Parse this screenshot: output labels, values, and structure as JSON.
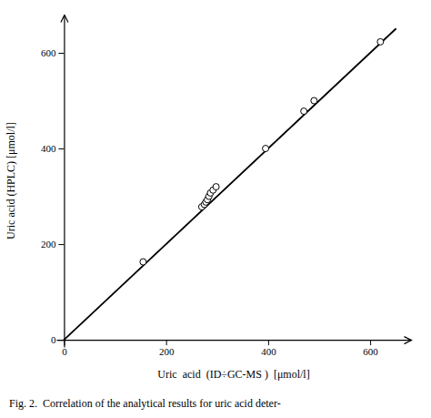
{
  "chart_data": {
    "type": "scatter",
    "xlabel": "Uric  acid  (ID÷GC-MS )  [μmol/l]",
    "ylabel": "Uric acid (HPLC) [μmol/l]",
    "caption": "Fig. 2.  Correlation of the analytical results for uric acid deter-",
    "series": [
      {
        "type": "line",
        "color": "#000000",
        "line_style": "solid",
        "x": [
          0,
          650
        ],
        "values": [
          0,
          650
        ]
      },
      {
        "type": "scatter",
        "color": "#000000",
        "marker": "open-circle",
        "x": [
          155,
          270,
          275,
          278,
          281,
          284,
          287,
          292,
          298,
          395,
          470,
          490,
          620
        ],
        "values": [
          163,
          278,
          283,
          288,
          293,
          300,
          307,
          313,
          320,
          400,
          478,
          500,
          623
        ]
      }
    ],
    "xlim": [
      -15,
      680
    ],
    "ylim": [
      -15,
      680
    ],
    "xticks": [
      0,
      200,
      400,
      600
    ],
    "yticks": [
      0,
      200,
      400,
      600
    ],
    "grid": false
  }
}
